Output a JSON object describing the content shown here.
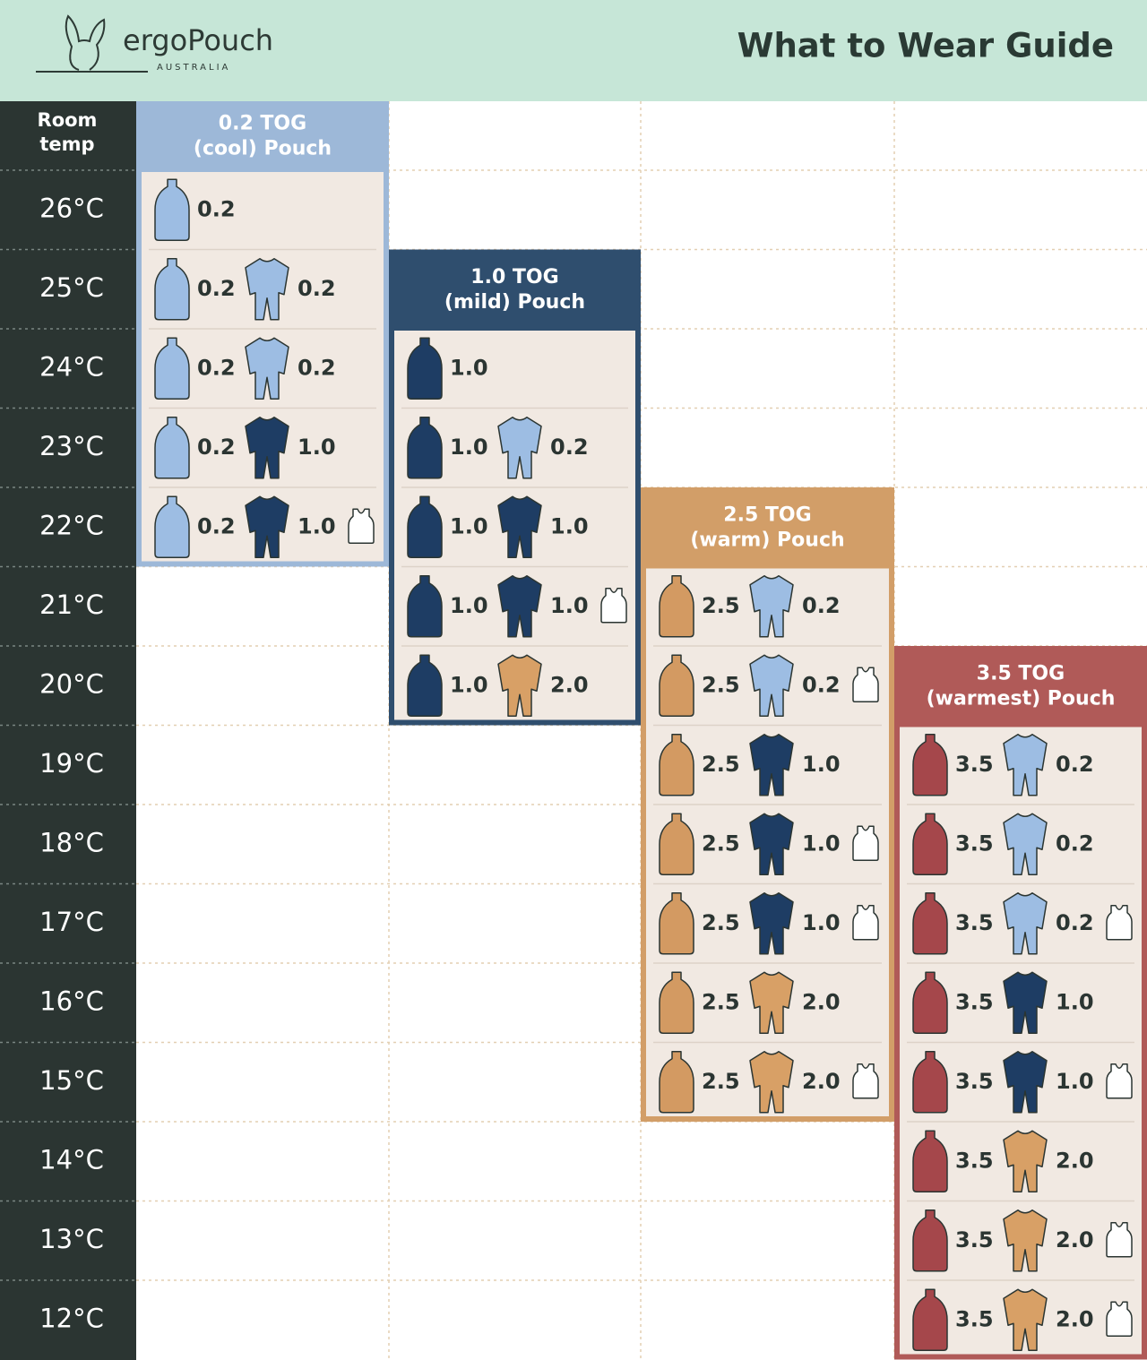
{
  "header": {
    "brand": "ergoPouch",
    "brand_sub": "AUSTRALIA",
    "title": "What to Wear Guide"
  },
  "temp_header": [
    "Room",
    "temp"
  ],
  "temps": [
    "26°C",
    "25°C",
    "24°C",
    "23°C",
    "22°C",
    "21°C",
    "20°C",
    "19°C",
    "18°C",
    "17°C",
    "16°C",
    "15°C",
    "14°C",
    "13°C",
    "12°C"
  ],
  "groups": [
    {
      "title": [
        "0.2 TOG",
        "(cool) Pouch"
      ],
      "color": "#9db8d8",
      "rows": [
        {
          "pouch": {
            "tog": "0.2",
            "color": "#9dbde3"
          },
          "suit": null,
          "singlet": false
        },
        {
          "pouch": {
            "tog": "0.2",
            "color": "#9dbde3"
          },
          "suit": {
            "tog": "0.2",
            "color": "#9dbde3"
          },
          "singlet": false
        },
        {
          "pouch": {
            "tog": "0.2",
            "color": "#9dbde3"
          },
          "suit": {
            "tog": "0.2",
            "color": "#9dbde3"
          },
          "singlet": false
        },
        {
          "pouch": {
            "tog": "0.2",
            "color": "#9dbde3"
          },
          "suit": {
            "tog": "1.0",
            "color": "#1e3d64"
          },
          "singlet": false
        },
        {
          "pouch": {
            "tog": "0.2",
            "color": "#9dbde3"
          },
          "suit": {
            "tog": "1.0",
            "color": "#1e3d64"
          },
          "singlet": true
        },
        null,
        null,
        null,
        null,
        null,
        null,
        null,
        null,
        null,
        null
      ]
    },
    {
      "title": [
        "1.0 TOG",
        "(mild) Pouch"
      ],
      "color": "#2f4e6e",
      "rows": [
        null,
        null,
        {
          "pouch": {
            "tog": "1.0",
            "color": "#1e3d64"
          },
          "suit": null,
          "singlet": false
        },
        {
          "pouch": {
            "tog": "1.0",
            "color": "#1e3d64"
          },
          "suit": {
            "tog": "0.2",
            "color": "#9dbde3"
          },
          "singlet": false
        },
        {
          "pouch": {
            "tog": "1.0",
            "color": "#1e3d64"
          },
          "suit": {
            "tog": "1.0",
            "color": "#1e3d64"
          },
          "singlet": false
        },
        {
          "pouch": {
            "tog": "1.0",
            "color": "#1e3d64"
          },
          "suit": {
            "tog": "1.0",
            "color": "#1e3d64"
          },
          "singlet": true
        },
        {
          "pouch": {
            "tog": "1.0",
            "color": "#1e3d64"
          },
          "suit": {
            "tog": "2.0",
            "color": "#d8a066"
          },
          "singlet": false
        },
        null,
        null,
        null,
        null,
        null,
        null,
        null,
        null
      ]
    },
    {
      "title": [
        "2.5 TOG",
        "(warm) Pouch"
      ],
      "color": "#d29e68",
      "rows": [
        null,
        null,
        null,
        null,
        null,
        {
          "pouch": {
            "tog": "2.5",
            "color": "#d39a62"
          },
          "suit": {
            "tog": "0.2",
            "color": "#9dbde3"
          },
          "singlet": false
        },
        {
          "pouch": {
            "tog": "2.5",
            "color": "#d39a62"
          },
          "suit": {
            "tog": "0.2",
            "color": "#9dbde3"
          },
          "singlet": true
        },
        {
          "pouch": {
            "tog": "2.5",
            "color": "#d39a62"
          },
          "suit": {
            "tog": "1.0",
            "color": "#1e3d64"
          },
          "singlet": false
        },
        {
          "pouch": {
            "tog": "2.5",
            "color": "#d39a62"
          },
          "suit": {
            "tog": "1.0",
            "color": "#1e3d64"
          },
          "singlet": true
        },
        {
          "pouch": {
            "tog": "2.5",
            "color": "#d39a62"
          },
          "suit": {
            "tog": "1.0",
            "color": "#1e3d64"
          },
          "singlet": true
        },
        {
          "pouch": {
            "tog": "2.5",
            "color": "#d39a62"
          },
          "suit": {
            "tog": "2.0",
            "color": "#d8a066"
          },
          "singlet": false
        },
        {
          "pouch": {
            "tog": "2.5",
            "color": "#d39a62"
          },
          "suit": {
            "tog": "2.0",
            "color": "#d8a066"
          },
          "singlet": true
        },
        null,
        null,
        null
      ]
    },
    {
      "title": [
        "3.5 TOG",
        "(warmest) Pouch"
      ],
      "color": "#b05a58",
      "rows": [
        null,
        null,
        null,
        null,
        null,
        null,
        null,
        {
          "pouch": {
            "tog": "3.5",
            "color": "#a5474b"
          },
          "suit": {
            "tog": "0.2",
            "color": "#9dbde3"
          },
          "singlet": false
        },
        {
          "pouch": {
            "tog": "3.5",
            "color": "#a5474b"
          },
          "suit": {
            "tog": "0.2",
            "color": "#9dbde3"
          },
          "singlet": false
        },
        {
          "pouch": {
            "tog": "3.5",
            "color": "#a5474b"
          },
          "suit": {
            "tog": "0.2",
            "color": "#9dbde3"
          },
          "singlet": true
        },
        {
          "pouch": {
            "tog": "3.5",
            "color": "#a5474b"
          },
          "suit": {
            "tog": "1.0",
            "color": "#1e3d64"
          },
          "singlet": false
        },
        {
          "pouch": {
            "tog": "3.5",
            "color": "#a5474b"
          },
          "suit": {
            "tog": "1.0",
            "color": "#1e3d64"
          },
          "singlet": true
        },
        {
          "pouch": {
            "tog": "3.5",
            "color": "#a5474b"
          },
          "suit": {
            "tog": "2.0",
            "color": "#d8a066"
          },
          "singlet": false
        },
        {
          "pouch": {
            "tog": "3.5",
            "color": "#a5474b"
          },
          "suit": {
            "tog": "2.0",
            "color": "#d8a066"
          },
          "singlet": true
        },
        {
          "pouch": {
            "tog": "3.5",
            "color": "#a5474b"
          },
          "suit": {
            "tog": "2.0",
            "color": "#d8a066"
          },
          "singlet": true
        }
      ]
    }
  ]
}
